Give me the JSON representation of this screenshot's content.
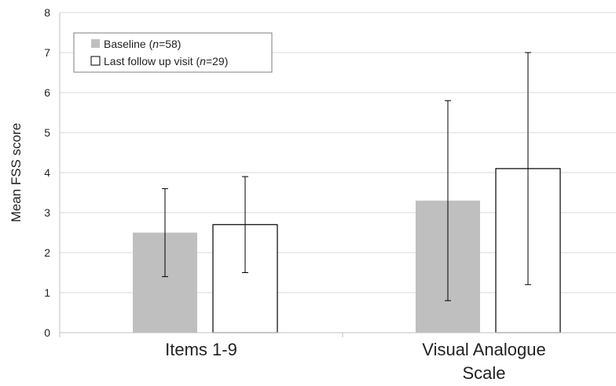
{
  "chart_data": {
    "type": "bar",
    "categories": [
      "Items 1-9",
      "Visual Analogue Scale"
    ],
    "category_label_lines": [
      [
        "Items 1-9"
      ],
      [
        "Visual Analogue",
        "Scale"
      ]
    ],
    "ylabel": "Mean FSS score",
    "ylim": [
      0,
      8
    ],
    "yticks": [
      0,
      1,
      2,
      3,
      4,
      5,
      6,
      7,
      8
    ],
    "grid": true,
    "legend_position": "top-left",
    "series": [
      {
        "label_prefix": "Baseline (",
        "label_italic": "n",
        "label_suffix": "=58)",
        "values": [
          2.5,
          3.3
        ],
        "error_low": [
          1.4,
          0.8
        ],
        "error_high": [
          3.6,
          5.8
        ],
        "color": "#bfbfbf",
        "outline": "none"
      },
      {
        "label_prefix": "Last follow up visit (",
        "label_italic": "n",
        "label_suffix": "=29)",
        "values": [
          2.7,
          4.1
        ],
        "error_low": [
          1.5,
          1.2
        ],
        "error_high": [
          3.9,
          7.0
        ],
        "color": "#ffffff",
        "outline": "#000000"
      }
    ]
  }
}
